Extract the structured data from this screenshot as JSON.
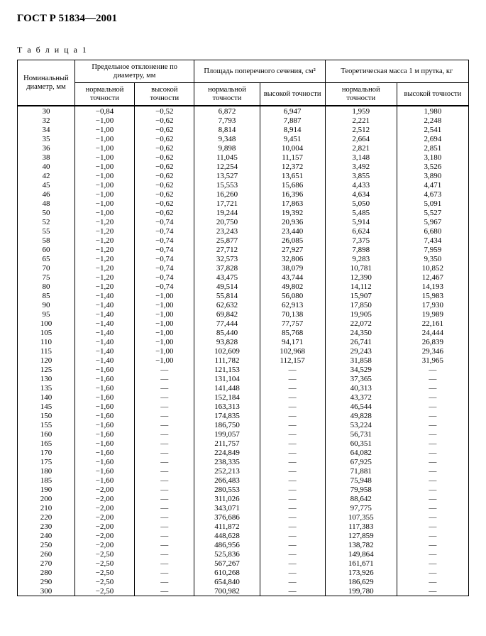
{
  "doc_title": "ГОСТ Р 51834—2001",
  "table_caption": "Т а б л и ц а  1",
  "headers": {
    "nominal": "Номинальный диаметр, мм",
    "deviation_group": "Предельное отклонение по диаметру, мм",
    "area_group": "Площадь поперечного сечения, см²",
    "mass_group": "Теоретическая масса 1 м прутка, кг",
    "normal": "нормальной точности",
    "high": "высокой точности"
  },
  "dash": "—",
  "rows": [
    {
      "d": "30",
      "dn": "−0,84",
      "dh": "−0,52",
      "an": "6,872",
      "ah": "6,947",
      "mn": "1,959",
      "mh": "1,980"
    },
    {
      "d": "32",
      "dn": "−1,00",
      "dh": "−0,62",
      "an": "7,793",
      "ah": "7,887",
      "mn": "2,221",
      "mh": "2,248"
    },
    {
      "d": "34",
      "dn": "−1,00",
      "dh": "−0,62",
      "an": "8,814",
      "ah": "8,914",
      "mn": "2,512",
      "mh": "2,541"
    },
    {
      "d": "35",
      "dn": "−1,00",
      "dh": "−0,62",
      "an": "9,348",
      "ah": "9,451",
      "mn": "2,664",
      "mh": "2,694"
    },
    {
      "d": "36",
      "dn": "−1,00",
      "dh": "−0,62",
      "an": "9,898",
      "ah": "10,004",
      "mn": "2,821",
      "mh": "2,851"
    },
    {
      "d": "38",
      "dn": "−1,00",
      "dh": "−0,62",
      "an": "11,045",
      "ah": "11,157",
      "mn": "3,148",
      "mh": "3,180"
    },
    {
      "d": "40",
      "dn": "−1,00",
      "dh": "−0,62",
      "an": "12,254",
      "ah": "12,372",
      "mn": "3,492",
      "mh": "3,526"
    },
    {
      "d": "42",
      "dn": "−1,00",
      "dh": "−0,62",
      "an": "13,527",
      "ah": "13,651",
      "mn": "3,855",
      "mh": "3,890"
    },
    {
      "d": "45",
      "dn": "−1,00",
      "dh": "−0,62",
      "an": "15,553",
      "ah": "15,686",
      "mn": "4,433",
      "mh": "4,471"
    },
    {
      "d": "46",
      "dn": "−1,00",
      "dh": "−0,62",
      "an": "16,260",
      "ah": "16,396",
      "mn": "4,634",
      "mh": "4,673"
    },
    {
      "d": "48",
      "dn": "−1,00",
      "dh": "−0,62",
      "an": "17,721",
      "ah": "17,863",
      "mn": "5,050",
      "mh": "5,091"
    },
    {
      "d": "50",
      "dn": "−1,00",
      "dh": "−0,62",
      "an": "19,244",
      "ah": "19,392",
      "mn": "5,485",
      "mh": "5,527"
    },
    {
      "d": "52",
      "dn": "−1,20",
      "dh": "−0,74",
      "an": "20,750",
      "ah": "20,936",
      "mn": "5,914",
      "mh": "5,967"
    },
    {
      "d": "55",
      "dn": "−1,20",
      "dh": "−0,74",
      "an": "23,243",
      "ah": "23,440",
      "mn": "6,624",
      "mh": "6,680"
    },
    {
      "d": "58",
      "dn": "−1,20",
      "dh": "−0,74",
      "an": "25,877",
      "ah": "26,085",
      "mn": "7,375",
      "mh": "7,434"
    },
    {
      "d": "60",
      "dn": "−1,20",
      "dh": "−0,74",
      "an": "27,712",
      "ah": "27,927",
      "mn": "7,898",
      "mh": "7,959"
    },
    {
      "d": "65",
      "dn": "−1,20",
      "dh": "−0,74",
      "an": "32,573",
      "ah": "32,806",
      "mn": "9,283",
      "mh": "9,350"
    },
    {
      "d": "70",
      "dn": "−1,20",
      "dh": "−0,74",
      "an": "37,828",
      "ah": "38,079",
      "mn": "10,781",
      "mh": "10,852"
    },
    {
      "d": "75",
      "dn": "−1,20",
      "dh": "−0,74",
      "an": "43,475",
      "ah": "43,744",
      "mn": "12,390",
      "mh": "12,467"
    },
    {
      "d": "80",
      "dn": "−1,20",
      "dh": "−0,74",
      "an": "49,514",
      "ah": "49,802",
      "mn": "14,112",
      "mh": "14,193"
    },
    {
      "d": "85",
      "dn": "−1,40",
      "dh": "−1,00",
      "an": "55,814",
      "ah": "56,080",
      "mn": "15,907",
      "mh": "15,983"
    },
    {
      "d": "90",
      "dn": "−1,40",
      "dh": "−1,00",
      "an": "62,632",
      "ah": "62,913",
      "mn": "17,850",
      "mh": "17,930"
    },
    {
      "d": "95",
      "dn": "−1,40",
      "dh": "−1,00",
      "an": "69,842",
      "ah": "70,138",
      "mn": "19,905",
      "mh": "19,989"
    },
    {
      "d": "100",
      "dn": "−1,40",
      "dh": "−1,00",
      "an": "77,444",
      "ah": "77,757",
      "mn": "22,072",
      "mh": "22,161"
    },
    {
      "d": "105",
      "dn": "−1,40",
      "dh": "−1,00",
      "an": "85,440",
      "ah": "85,768",
      "mn": "24,350",
      "mh": "24,444"
    },
    {
      "d": "110",
      "dn": "−1,40",
      "dh": "−1,00",
      "an": "93,828",
      "ah": "94,171",
      "mn": "26,741",
      "mh": "26,839"
    },
    {
      "d": "115",
      "dn": "−1,40",
      "dh": "−1,00",
      "an": "102,609",
      "ah": "102,968",
      "mn": "29,243",
      "mh": "29,346"
    },
    {
      "d": "120",
      "dn": "−1,40",
      "dh": "−1,00",
      "an": "111,782",
      "ah": "112,157",
      "mn": "31,858",
      "mh": "31,965"
    },
    {
      "d": "125",
      "dn": "−1,60",
      "dh": "—",
      "an": "121,153",
      "ah": "—",
      "mn": "34,529",
      "mh": "—"
    },
    {
      "d": "130",
      "dn": "−1,60",
      "dh": "—",
      "an": "131,104",
      "ah": "—",
      "mn": "37,365",
      "mh": "—"
    },
    {
      "d": "135",
      "dn": "−1,60",
      "dh": "—",
      "an": "141,448",
      "ah": "—",
      "mn": "40,313",
      "mh": "—"
    },
    {
      "d": "140",
      "dn": "−1,60",
      "dh": "—",
      "an": "152,184",
      "ah": "—",
      "mn": "43,372",
      "mh": "—"
    },
    {
      "d": "145",
      "dn": "−1,60",
      "dh": "—",
      "an": "163,313",
      "ah": "—",
      "mn": "46,544",
      "mh": "—"
    },
    {
      "d": "150",
      "dn": "−1,60",
      "dh": "—",
      "an": "174,835",
      "ah": "—",
      "mn": "49,828",
      "mh": "—"
    },
    {
      "d": "155",
      "dn": "−1,60",
      "dh": "—",
      "an": "186,750",
      "ah": "—",
      "mn": "53,224",
      "mh": "—"
    },
    {
      "d": "160",
      "dn": "−1,60",
      "dh": "—",
      "an": "199,057",
      "ah": "—",
      "mn": "56,731",
      "mh": "—"
    },
    {
      "d": "165",
      "dn": "−1,60",
      "dh": "—",
      "an": "211,757",
      "ah": "—",
      "mn": "60,351",
      "mh": "—"
    },
    {
      "d": "170",
      "dn": "−1,60",
      "dh": "—",
      "an": "224,849",
      "ah": "—",
      "mn": "64,082",
      "mh": "—"
    },
    {
      "d": "175",
      "dn": "−1,60",
      "dh": "—",
      "an": "238,335",
      "ah": "—",
      "mn": "67,925",
      "mh": "—"
    },
    {
      "d": "180",
      "dn": "−1,60",
      "dh": "—",
      "an": "252,213",
      "ah": "—",
      "mn": "71,881",
      "mh": "—"
    },
    {
      "d": "185",
      "dn": "−1,60",
      "dh": "—",
      "an": "266,483",
      "ah": "—",
      "mn": "75,948",
      "mh": "—"
    },
    {
      "d": "190",
      "dn": "−2,00",
      "dh": "—",
      "an": "280,553",
      "ah": "—",
      "mn": "79,958",
      "mh": "—"
    },
    {
      "d": "200",
      "dn": "−2,00",
      "dh": "—",
      "an": "311,026",
      "ah": "—",
      "mn": "88,642",
      "mh": "—"
    },
    {
      "d": "210",
      "dn": "−2,00",
      "dh": "—",
      "an": "343,071",
      "ah": "—",
      "mn": "97,775",
      "mh": "—"
    },
    {
      "d": "220",
      "dn": "−2,00",
      "dh": "—",
      "an": "376,686",
      "ah": "—",
      "mn": "107,355",
      "mh": "—"
    },
    {
      "d": "230",
      "dn": "−2,00",
      "dh": "—",
      "an": "411,872",
      "ah": "—",
      "mn": "117,383",
      "mh": "—"
    },
    {
      "d": "240",
      "dn": "−2,00",
      "dh": "—",
      "an": "448,628",
      "ah": "—",
      "mn": "127,859",
      "mh": "—"
    },
    {
      "d": "250",
      "dn": "−2,00",
      "dh": "—",
      "an": "486,956",
      "ah": "—",
      "mn": "138,782",
      "mh": "—"
    },
    {
      "d": "260",
      "dn": "−2,50",
      "dh": "—",
      "an": "525,836",
      "ah": "—",
      "mn": "149,864",
      "mh": "—"
    },
    {
      "d": "270",
      "dn": "−2,50",
      "dh": "—",
      "an": "567,267",
      "ah": "—",
      "mn": "161,671",
      "mh": "—"
    },
    {
      "d": "280",
      "dn": "−2,50",
      "dh": "—",
      "an": "610,268",
      "ah": "—",
      "mn": "173,926",
      "mh": "—"
    },
    {
      "d": "290",
      "dn": "−2,50",
      "dh": "—",
      "an": "654,840",
      "ah": "—",
      "mn": "186,629",
      "mh": "—"
    },
    {
      "d": "300",
      "dn": "−2,50",
      "dh": "—",
      "an": "700,982",
      "ah": "—",
      "mn": "199,780",
      "mh": "—"
    }
  ]
}
